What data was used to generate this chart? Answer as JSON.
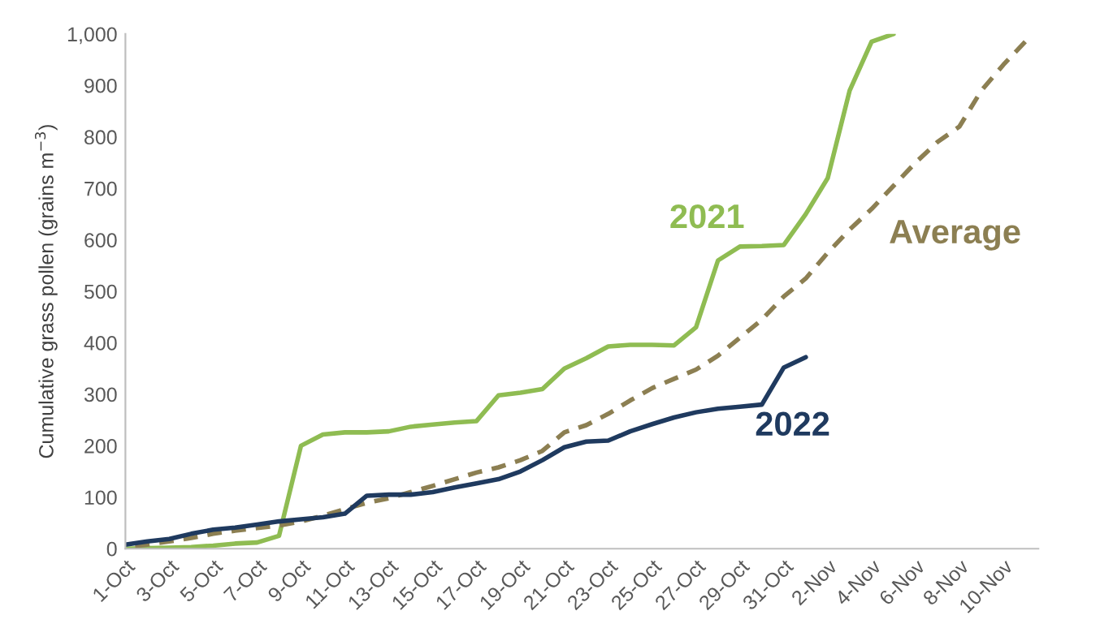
{
  "chart_data": {
    "type": "line",
    "ylabel": "Cumulative grass pollen (grains m$^{−3}$)",
    "categories": [
      "1-Oct",
      null,
      "3-Oct",
      null,
      "5-Oct",
      null,
      "7-Oct",
      null,
      "9-Oct",
      null,
      "11-Oct",
      null,
      "13-Oct",
      null,
      "15-Oct",
      null,
      "17-Oct",
      null,
      "19-Oct",
      null,
      "21-Oct",
      null,
      "23-Oct",
      null,
      "25-Oct",
      null,
      "27-Oct",
      null,
      "29-Oct",
      null,
      "31-Oct",
      null,
      "2-Nov",
      null,
      "4-Nov",
      null,
      "6-Nov",
      null,
      "8-Nov",
      null,
      "10-Nov",
      null
    ],
    "ylim": [
      0,
      1000
    ],
    "yticks": [
      0,
      100,
      200,
      300,
      400,
      500,
      600,
      700,
      800,
      900,
      {
        "value": 1000,
        "label": "1,000"
      }
    ],
    "grid": false,
    "legend": false,
    "marker": "none",
    "series": [
      {
        "name": "2021",
        "color": "#8fbc52",
        "line_style": "solid",
        "values": [
          0,
          1,
          2,
          3,
          6,
          10,
          12,
          25,
          200,
          222,
          226,
          226,
          228,
          237,
          241,
          245,
          248,
          298,
          303,
          310,
          350,
          370,
          393,
          396,
          396,
          395,
          430,
          560,
          587,
          588,
          590,
          650,
          720,
          890,
          985,
          1000,
          null,
          null,
          null,
          null,
          null,
          null
        ]
      },
      {
        "name": "Average",
        "color": "#8c7f52",
        "line_style": "dashed",
        "values": [
          3,
          8,
          14,
          21,
          29,
          35,
          40,
          45,
          53,
          64,
          77,
          89,
          98,
          110,
          122,
          135,
          148,
          158,
          172,
          190,
          226,
          240,
          262,
          288,
          312,
          330,
          348,
          375,
          410,
          445,
          490,
          525,
          575,
          620,
          660,
          705,
          750,
          790,
          820,
          890,
          940,
          985
        ]
      },
      {
        "name": "2022",
        "color": "#1f3a5f",
        "line_style": "solid",
        "values": [
          8,
          14,
          19,
          29,
          37,
          41,
          47,
          53,
          57,
          61,
          68,
          103,
          105,
          105,
          110,
          119,
          127,
          135,
          150,
          172,
          197,
          208,
          210,
          228,
          242,
          255,
          265,
          272,
          276,
          280,
          352,
          372,
          null,
          null,
          null,
          null,
          null,
          null,
          null,
          null,
          null,
          null
        ]
      }
    ]
  }
}
